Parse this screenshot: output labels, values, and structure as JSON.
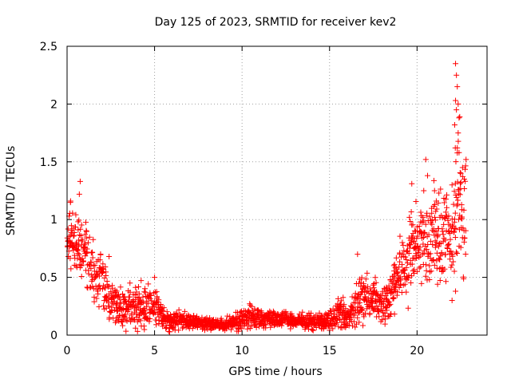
{
  "chart_data": {
    "type": "scatter",
    "title": "Day 125 of 2023, SRMTID for receiver kev2",
    "xlabel": "GPS time / hours",
    "ylabel": "SRMTID / TECUs",
    "xlim": [
      0,
      24
    ],
    "ylim": [
      0,
      2.5
    ],
    "xticks": [
      0,
      5,
      10,
      15,
      20
    ],
    "xtick_labels": [
      "0",
      "5",
      "10",
      "15",
      "20"
    ],
    "yticks": [
      0,
      0.5,
      1,
      1.5,
      2,
      2.5
    ],
    "ytick_labels": [
      "0",
      "0.5",
      "1",
      "1.5",
      "2",
      "2.5"
    ],
    "grid": true,
    "marker": "plus",
    "color": "#ff0000",
    "series": [
      {
        "name": "kev2",
        "profile_hours": [
          0,
          0.5,
          1,
          1.5,
          2,
          2.5,
          3,
          3.5,
          4,
          4.5,
          5,
          5.5,
          6,
          7,
          8,
          9,
          10,
          10.5,
          11,
          12,
          13,
          14,
          15,
          15.5,
          16,
          16.5,
          17,
          17.5,
          18,
          18.5,
          19,
          19.5,
          20,
          20.5,
          21,
          21.5,
          22,
          22.3,
          22.8
        ],
        "profile_median": [
          0.85,
          0.8,
          0.72,
          0.55,
          0.45,
          0.3,
          0.25,
          0.24,
          0.24,
          0.25,
          0.22,
          0.16,
          0.12,
          0.12,
          0.1,
          0.09,
          0.13,
          0.17,
          0.14,
          0.15,
          0.12,
          0.12,
          0.12,
          0.2,
          0.15,
          0.25,
          0.32,
          0.32,
          0.25,
          0.35,
          0.55,
          0.65,
          0.75,
          0.85,
          0.85,
          0.85,
          0.9,
          1.2,
          0.95
        ],
        "profile_spread": [
          0.18,
          0.18,
          0.16,
          0.15,
          0.14,
          0.12,
          0.12,
          0.11,
          0.11,
          0.11,
          0.1,
          0.06,
          0.05,
          0.04,
          0.03,
          0.03,
          0.05,
          0.07,
          0.05,
          0.04,
          0.04,
          0.04,
          0.05,
          0.08,
          0.06,
          0.12,
          0.13,
          0.11,
          0.08,
          0.14,
          0.18,
          0.2,
          0.22,
          0.25,
          0.25,
          0.25,
          0.25,
          0.4,
          0.3
        ],
        "outliers": [
          {
            "x": 0.75,
            "y": 1.33
          },
          {
            "x": 0.7,
            "y": 1.22
          },
          {
            "x": 0.2,
            "y": 1.16
          },
          {
            "x": 2.4,
            "y": 0.68
          },
          {
            "x": 5.0,
            "y": 0.5
          },
          {
            "x": 16.6,
            "y": 0.7
          },
          {
            "x": 19.7,
            "y": 1.31
          },
          {
            "x": 20.5,
            "y": 1.52
          },
          {
            "x": 20.6,
            "y": 1.38
          },
          {
            "x": 21.0,
            "y": 1.25
          },
          {
            "x": 22.2,
            "y": 2.35
          },
          {
            "x": 22.25,
            "y": 2.25
          },
          {
            "x": 22.3,
            "y": 2.15
          },
          {
            "x": 22.2,
            "y": 2.03
          },
          {
            "x": 22.35,
            "y": 2.0
          },
          {
            "x": 22.25,
            "y": 1.95
          },
          {
            "x": 22.4,
            "y": 1.88
          },
          {
            "x": 22.15,
            "y": 1.82
          },
          {
            "x": 22.35,
            "y": 1.75
          },
          {
            "x": 22.3,
            "y": 1.62
          },
          {
            "x": 22.4,
            "y": 1.58
          },
          {
            "x": 22.8,
            "y": 1.52
          },
          {
            "x": 22.6,
            "y": 1.45
          },
          {
            "x": 22.5,
            "y": 1.4
          },
          {
            "x": 22.7,
            "y": 1.35
          },
          {
            "x": 22.0,
            "y": 1.3
          },
          {
            "x": 22.2,
            "y": 0.38
          },
          {
            "x": 22.0,
            "y": 0.3
          }
        ]
      }
    ]
  }
}
